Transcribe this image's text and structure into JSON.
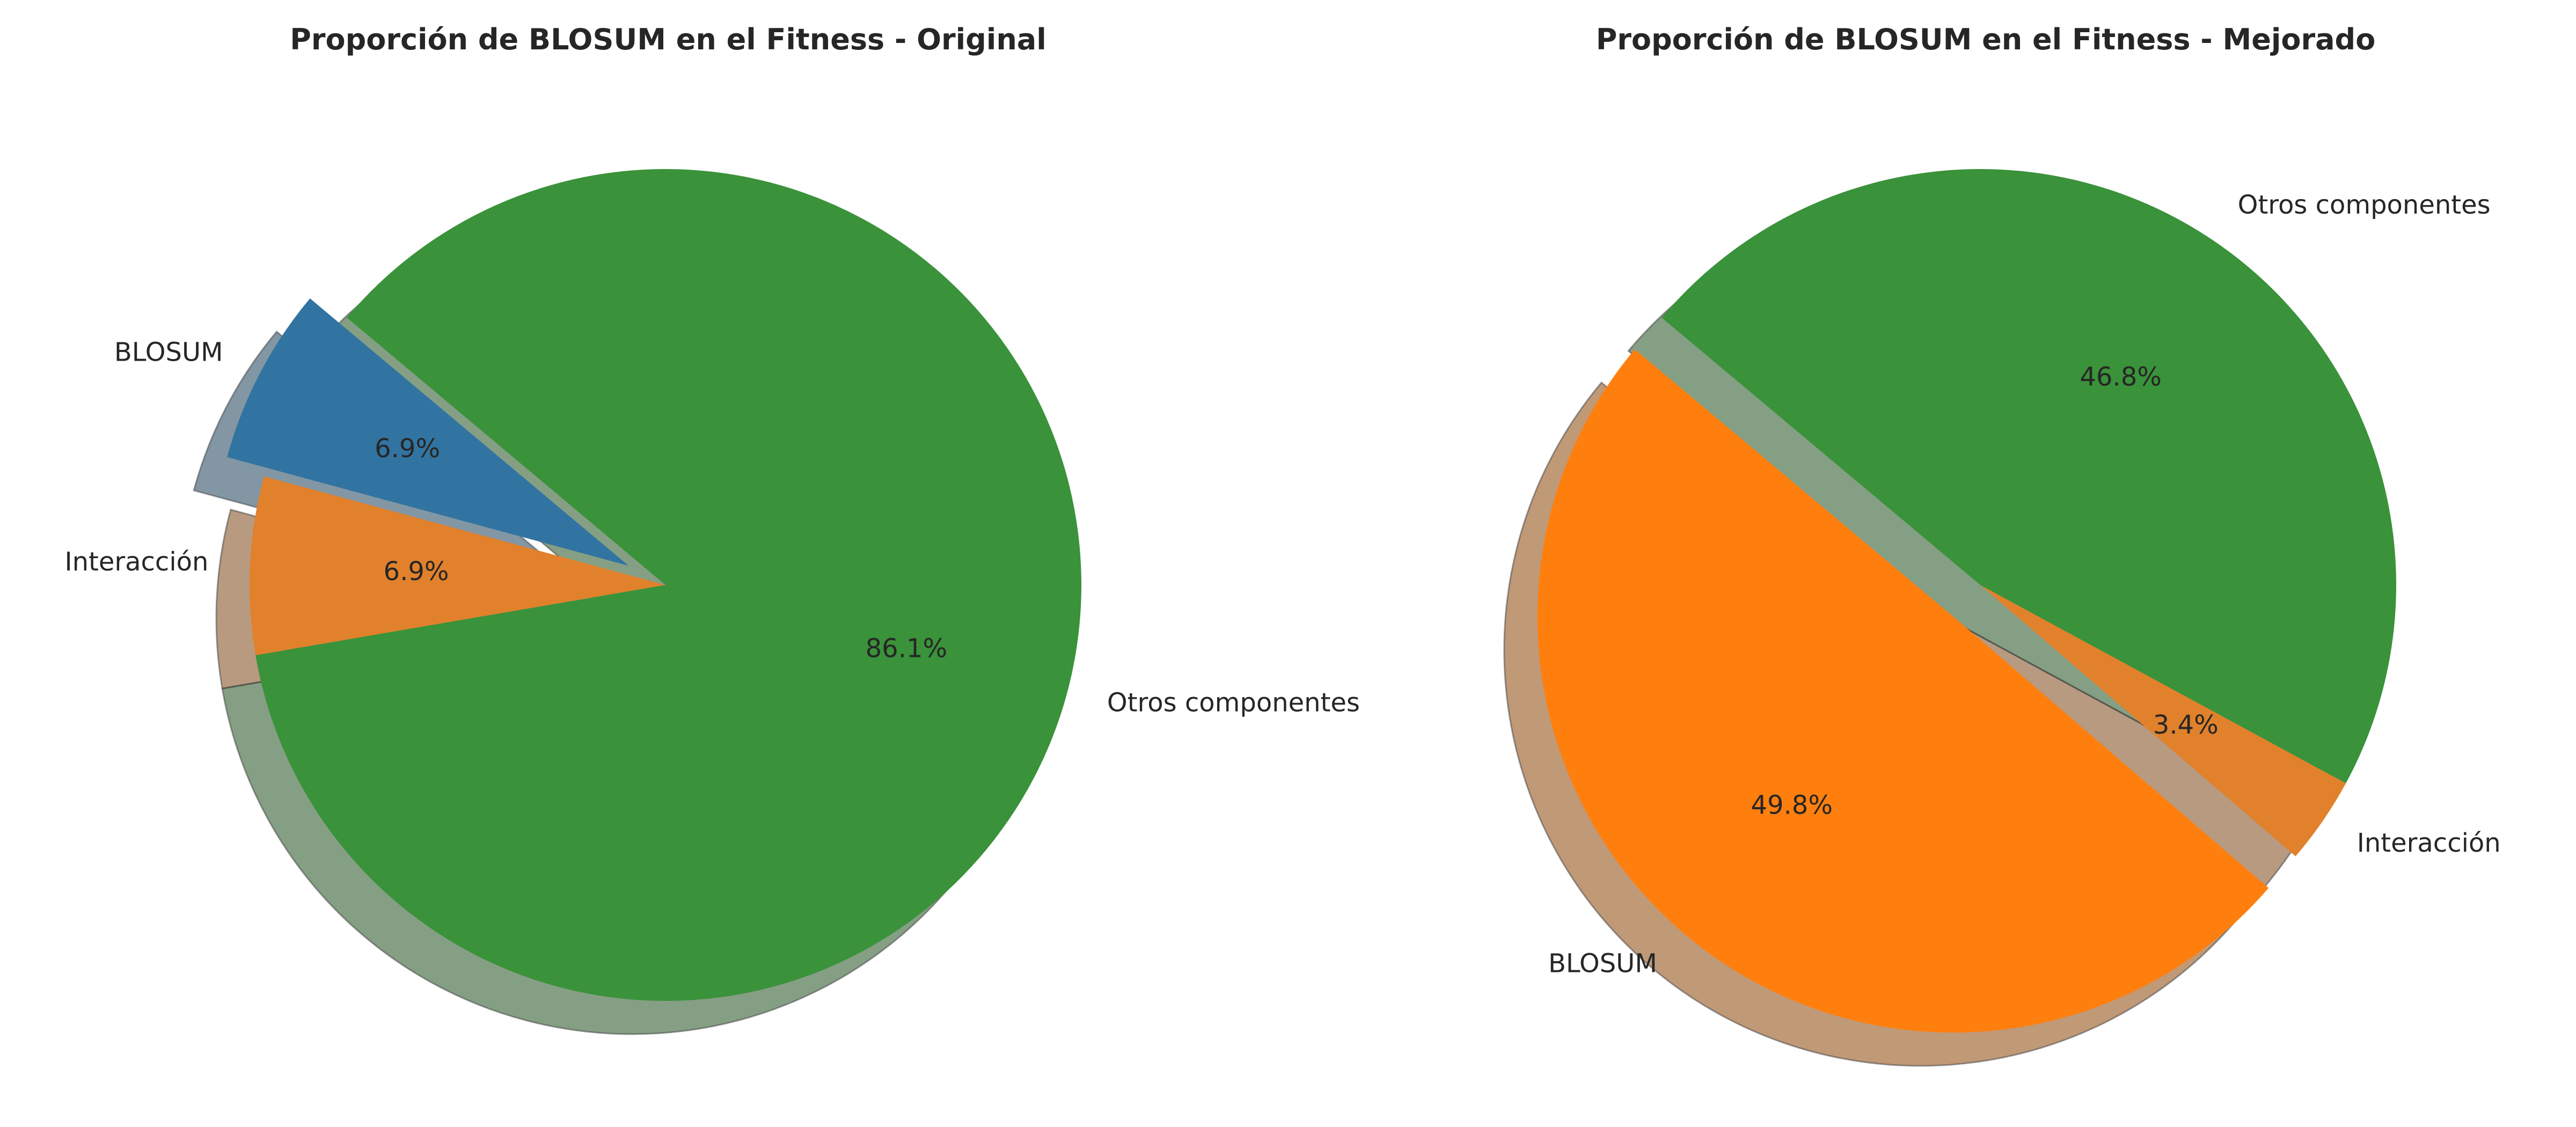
{
  "chart_data": [
    {
      "type": "pie",
      "title": "Proporción de BLOSUM en el Fitness - Original",
      "slices": [
        {
          "label": "BLOSUM",
          "value": 6.9,
          "pct_label": "6.9%",
          "color": "#3274a1",
          "exploded": true
        },
        {
          "label": "Interacción",
          "value": 6.9,
          "pct_label": "6.9%",
          "color": "#e1812c",
          "exploded": false
        },
        {
          "label": "Otros componentes",
          "value": 86.1,
          "pct_label": "86.1%",
          "color": "#3a923a",
          "exploded": false
        }
      ],
      "start_angle_deg": 140,
      "shadow": true,
      "legend": "none"
    },
    {
      "type": "pie",
      "title": "Proporción de BLOSUM en el Fitness - Mejorado",
      "slices": [
        {
          "label": "BLOSUM",
          "value": 49.8,
          "pct_label": "49.8%",
          "color": "#ff7f0e",
          "exploded": true
        },
        {
          "label": "Interacción",
          "value": 3.4,
          "pct_label": "3.4%",
          "color": "#e1812c",
          "exploded": false
        },
        {
          "label": "Otros componentes",
          "value": 46.8,
          "pct_label": "46.8%",
          "color": "#3a923a",
          "exploded": false
        }
      ],
      "start_angle_deg": 140,
      "shadow": true,
      "legend": "none"
    }
  ]
}
